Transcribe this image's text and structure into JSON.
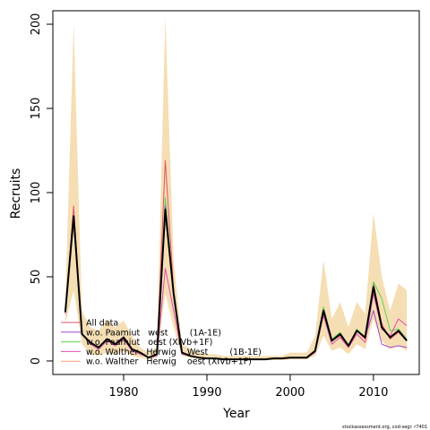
{
  "chart_data": {
    "type": "line",
    "xlabel": "Year",
    "ylabel": "Recruits",
    "xlim": [
      1971.5,
      2015.5
    ],
    "ylim": [
      -8,
      208
    ],
    "x_ticks": [
      1980,
      1990,
      2000,
      2010
    ],
    "y_ticks": [
      0,
      50,
      100,
      150,
      200
    ],
    "grid": false,
    "legend_position": "bottom-left",
    "credit": "stockassessment.org, cod-segr. r7401",
    "x": [
      1973,
      1974,
      1975,
      1976,
      1977,
      1978,
      1979,
      1980,
      1981,
      1982,
      1983,
      1984,
      1985,
      1986,
      1987,
      1988,
      1989,
      1990,
      1991,
      1992,
      1993,
      1994,
      1995,
      1996,
      1997,
      1998,
      1999,
      2000,
      2001,
      2002,
      2003,
      2004,
      2005,
      2006,
      2007,
      2008,
      2009,
      2010,
      2011,
      2012,
      2013,
      2014
    ],
    "band": {
      "color": "#f5deb3",
      "upper": [
        35,
        200,
        30,
        20,
        18,
        25,
        20,
        24,
        15,
        8,
        5,
        8,
        205,
        60,
        10,
        7,
        5,
        4,
        4,
        3,
        3,
        3,
        3,
        3,
        3,
        3,
        3,
        5,
        5,
        5,
        15,
        60,
        25,
        35,
        20,
        35,
        28,
        88,
        50,
        30,
        46,
        42
      ],
      "lower": [
        22,
        42,
        10,
        4,
        3,
        5,
        4,
        6,
        3,
        2,
        1,
        2,
        40,
        20,
        3,
        2,
        1,
        1,
        1,
        0.5,
        0.5,
        0.5,
        0.5,
        0.5,
        0.5,
        0.5,
        0.5,
        1,
        1,
        1,
        3,
        15,
        6,
        8,
        4,
        10,
        7,
        25,
        12,
        7,
        9,
        6
      ]
    },
    "series": [
      {
        "name": "All data",
        "color": "#000000",
        "width": 2,
        "values": [
          29,
          86,
          16,
          11,
          8,
          13,
          10,
          14,
          7,
          5,
          2,
          4,
          90,
          40,
          5,
          3,
          2,
          1.5,
          1.5,
          1,
          1,
          1,
          1,
          1,
          1,
          1.5,
          1.5,
          2,
          2,
          2,
          6,
          30,
          12,
          16,
          9,
          18,
          14,
          44,
          20,
          14,
          18,
          12
        ]
      },
      {
        "name": "w.o. Paamiut   west        (1A-1E)",
        "color": "#df536b",
        "width": 1,
        "values": [
          29,
          92,
          16,
          11,
          8,
          13,
          10,
          14,
          7,
          5,
          2,
          4,
          119,
          42,
          5,
          3,
          2,
          1.5,
          1.5,
          1,
          1,
          1,
          1,
          1,
          1,
          1.5,
          1.5,
          2,
          2,
          2,
          6,
          29,
          12,
          15,
          8,
          18,
          13,
          46,
          22,
          13,
          17,
          12
        ]
      },
      {
        "name": "w.o. Paamiut   oest (XIVb+1F)",
        "color": "#61d04f",
        "width": 1,
        "values": [
          29,
          85,
          16,
          11,
          8,
          13,
          10,
          14,
          7,
          5,
          2,
          4,
          97,
          40,
          5,
          3,
          2,
          1.5,
          1.5,
          1,
          1,
          1,
          1,
          1,
          1,
          1.5,
          1.5,
          2,
          2,
          2,
          6,
          32,
          13,
          17,
          9,
          19,
          14,
          47,
          37,
          18,
          19,
          13
        ]
      },
      {
        "name": "w.o. Walther   Herwig    West        (1B-1E)",
        "color": "#df4fae",
        "width": 1,
        "values": [
          28,
          84,
          16,
          10,
          7,
          12,
          9,
          13,
          6,
          4,
          2,
          3,
          55,
          30,
          4,
          3,
          2,
          1.5,
          1.5,
          1,
          1,
          1,
          1,
          1,
          1,
          1.5,
          1.5,
          2,
          2,
          2,
          5,
          27,
          10,
          14,
          8,
          16,
          11,
          40,
          19,
          15,
          25,
          21
        ]
      },
      {
        "name": "w.o. Walther   Herwig    oest (XIVb+1F)",
        "color": "#a44ac6",
        "width": 1,
        "values": [
          29,
          86,
          16,
          11,
          8,
          13,
          10,
          14,
          7,
          5,
          2,
          4,
          92,
          40,
          5,
          3,
          2,
          1.5,
          1.5,
          1,
          1,
          1,
          1,
          1,
          1,
          1.5,
          1.5,
          2,
          2,
          2,
          6,
          30,
          12,
          16,
          9,
          18,
          14,
          30,
          10,
          8,
          9,
          8
        ]
      }
    ]
  }
}
